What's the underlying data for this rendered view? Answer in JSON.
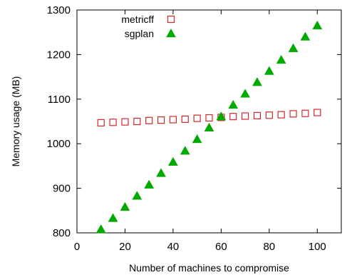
{
  "chart_data": {
    "type": "scatter",
    "title": "",
    "xlabel": "Number of machines to compromise",
    "ylabel": "Memory usage (MB)",
    "xlim": [
      0,
      110
    ],
    "ylim": [
      800,
      1300
    ],
    "x_ticks": [
      "0",
      "20",
      "40",
      "60",
      "80",
      "100"
    ],
    "y_ticks": [
      "800",
      "900",
      "1000",
      "1100",
      "1200",
      "1300"
    ],
    "grid": false,
    "legend_position": "top-left",
    "series": [
      {
        "name": "metricff",
        "marker": "open-square",
        "color": "#d62728",
        "x": [
          10,
          15,
          20,
          25,
          30,
          35,
          40,
          45,
          50,
          55,
          60,
          65,
          70,
          75,
          80,
          85,
          90,
          95,
          100
        ],
        "y": [
          1047,
          1048,
          1049,
          1050,
          1052,
          1053,
          1054,
          1055,
          1057,
          1058,
          1059,
          1061,
          1062,
          1063,
          1064,
          1065,
          1067,
          1068,
          1070
        ]
      },
      {
        "name": "sgplan",
        "marker": "filled-triangle",
        "color": "#00aa00",
        "x": [
          10,
          15,
          20,
          25,
          30,
          35,
          40,
          45,
          50,
          55,
          60,
          65,
          70,
          75,
          80,
          85,
          90,
          95,
          100
        ],
        "y": [
          808,
          833,
          858,
          883,
          908,
          934,
          959,
          984,
          1010,
          1036,
          1061,
          1087,
          1112,
          1138,
          1163,
          1188,
          1214,
          1240,
          1265
        ]
      }
    ]
  }
}
